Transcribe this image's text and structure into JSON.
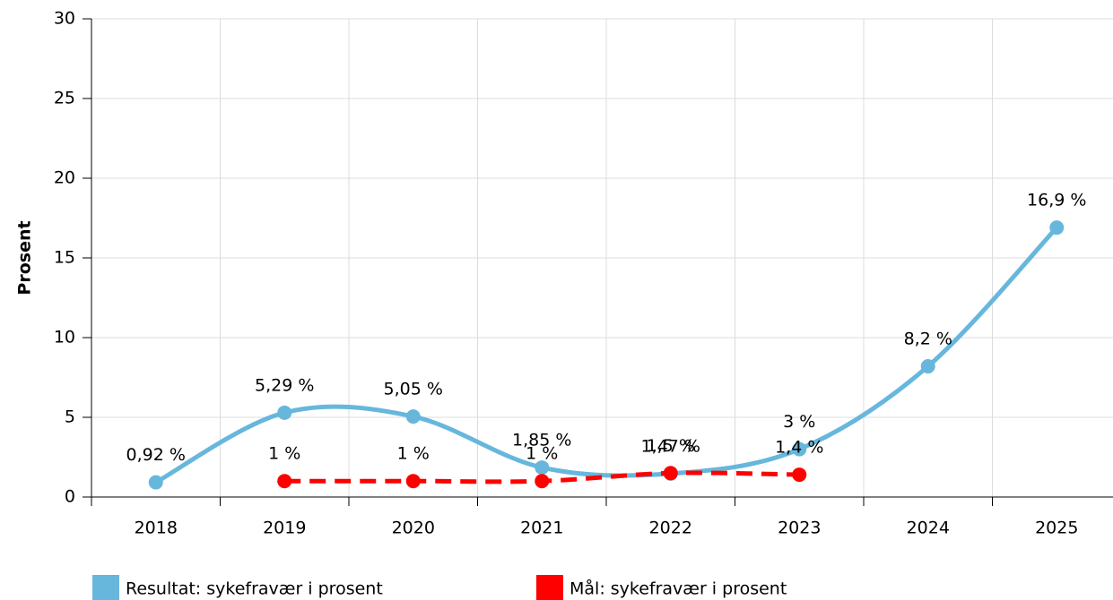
{
  "chart_data": {
    "type": "line",
    "y_label": "Prosent",
    "categories": [
      "2018",
      "2019",
      "2020",
      "2021",
      "2022",
      "2023",
      "2024",
      "2025"
    ],
    "series": [
      {
        "name": "Resultat: sykefravær i prosent",
        "color": "#67b7dc",
        "dashed": false,
        "values": [
          0.92,
          5.29,
          5.05,
          1.85,
          1.47,
          3,
          8.2,
          16.9
        ],
        "value_labels": [
          "0,92 %",
          "5,29 %",
          "5,05 %",
          "1,85 %",
          "1,47 %",
          "3 %",
          "8,2 %",
          "16,9 %"
        ]
      },
      {
        "name": "Mål: sykefravær i prosent",
        "color": "#ff0000",
        "dashed": true,
        "values": [
          null,
          1,
          1,
          1,
          1.5,
          1.4,
          null,
          null
        ],
        "value_labels": [
          null,
          "1 %",
          "1 %",
          "1 %",
          "1,5 %",
          "1,4 %",
          null,
          null
        ]
      }
    ],
    "ylim": [
      0,
      30
    ],
    "yticks": [
      0,
      5,
      10,
      15,
      20,
      25,
      30
    ],
    "grid": true
  }
}
